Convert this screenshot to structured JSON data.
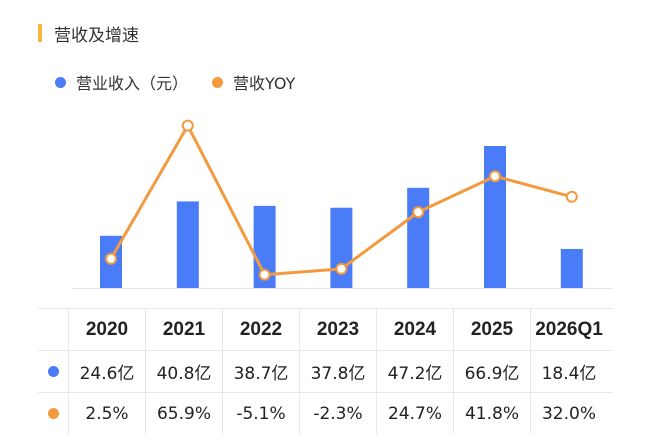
{
  "title": "营收及增速",
  "colors": {
    "bar": "#4a7cf7",
    "line": "#f39a3e",
    "accent": "#f5b73b"
  },
  "legend": [
    {
      "label": "营业收入（元）",
      "color": "#4a7cf7"
    },
    {
      "label": "营收YOY",
      "color": "#f39a3e"
    }
  ],
  "chart_data": {
    "type": "bar",
    "categories": [
      "2020",
      "2021",
      "2022",
      "2023",
      "2024",
      "2025",
      "2026Q1"
    ],
    "series": [
      {
        "name": "营业收入（元）",
        "type": "bar",
        "values": [
          24.6,
          40.8,
          38.7,
          37.8,
          47.2,
          66.9,
          18.4
        ],
        "unit": "亿"
      },
      {
        "name": "营收YOY",
        "type": "line",
        "values": [
          2.5,
          65.9,
          -5.1,
          -2.3,
          24.7,
          41.8,
          32.0
        ],
        "unit": "%"
      }
    ]
  },
  "table": {
    "headers": [
      "2020",
      "2021",
      "2022",
      "2023",
      "2024",
      "2025",
      "2026Q1"
    ],
    "rows": [
      {
        "color": "#4a7cf7",
        "cells": [
          "24.6亿",
          "40.8亿",
          "38.7亿",
          "37.8亿",
          "47.2亿",
          "66.9亿",
          "18.4亿"
        ]
      },
      {
        "color": "#f39a3e",
        "cells": [
          "2.5%",
          "65.9%",
          "-5.1%",
          "-2.3%",
          "24.7%",
          "41.8%",
          "32.0%"
        ]
      }
    ]
  }
}
